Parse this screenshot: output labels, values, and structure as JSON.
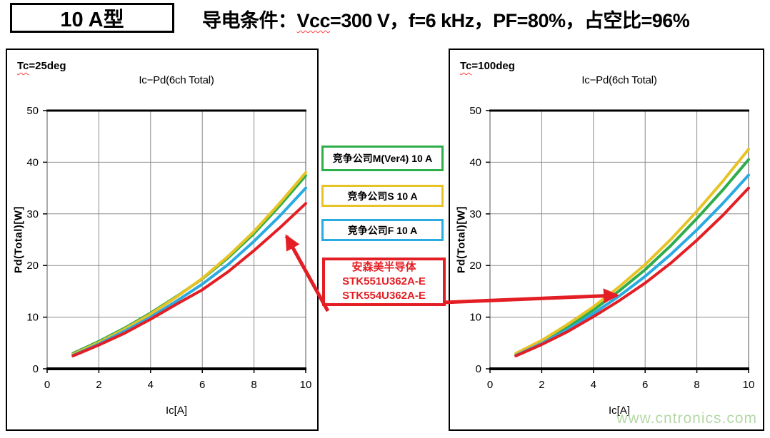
{
  "header": {
    "model_label": "10 A型",
    "condition": {
      "prefix": "导电条件：",
      "vcc": "Vcc",
      "after_vcc": "=300 V",
      "rest": "，f=6 kHz，PF=80%，占空比=96%"
    }
  },
  "legend": {
    "competitor_m": "竞争公司M(Ver4) 10 A",
    "competitor_s": "竞争公司S 10 A",
    "competitor_f": "竞争公司F 10 A",
    "onsemi": [
      "安森美半导体",
      "STK551U362A-E",
      "STK554U362A-E"
    ]
  },
  "watermark": "www.cntronics.com",
  "colors": {
    "green": "#2EAD4B",
    "yellow": "#E7C326",
    "blue": "#29ABE2",
    "red": "#E31E24",
    "watermark_green": "#B5D8A6",
    "grid_gray": "#8a8a8a"
  },
  "chart_data": [
    {
      "type": "line",
      "corner_label": {
        "prefix": "Tc",
        "suffix": "=25deg"
      },
      "title": "Ic−Pd(6ch Total)",
      "xlabel": "Ic[A]",
      "ylabel": "Pd(Total)[W]",
      "xlim": [
        0,
        10
      ],
      "ylim": [
        0,
        50
      ],
      "xticks": [
        0,
        2,
        4,
        6,
        8,
        10
      ],
      "yticks": [
        0,
        10,
        20,
        30,
        40,
        50
      ],
      "grid": true,
      "x": [
        1,
        2,
        3,
        4,
        5,
        6,
        7,
        8,
        9,
        10
      ],
      "series": [
        {
          "name": "竞争公司M(Ver4) 10 A",
          "color": "#2EAD4B",
          "values": [
            3.0,
            5.3,
            7.9,
            10.8,
            14.0,
            17.4,
            21.5,
            26.2,
            31.6,
            37.4
          ]
        },
        {
          "name": "竞争公司S 10 A",
          "color": "#E7C326",
          "values": [
            2.8,
            5.1,
            7.7,
            10.6,
            13.9,
            17.5,
            21.8,
            26.6,
            32.1,
            38.0
          ]
        },
        {
          "name": "竞争公司F 10 A",
          "color": "#29ABE2",
          "values": [
            2.6,
            4.8,
            7.3,
            10.0,
            13.1,
            16.4,
            20.2,
            24.7,
            29.6,
            35.0
          ]
        },
        {
          "name": "安森美半导体 STK551U362A-E / STK554U362A-E",
          "color": "#E31E24",
          "values": [
            2.5,
            4.6,
            6.9,
            9.6,
            12.5,
            15.3,
            18.8,
            22.9,
            27.3,
            32.0
          ]
        }
      ]
    },
    {
      "type": "line",
      "corner_label": {
        "prefix": "Tc",
        "suffix": "=100deg"
      },
      "title": "Ic−Pd(6ch Total)",
      "xlabel": "Ic[A]",
      "ylabel": "Pd(Total)[W]",
      "xlim": [
        0,
        10
      ],
      "ylim": [
        0,
        50
      ],
      "xticks": [
        0,
        2,
        4,
        6,
        8,
        10
      ],
      "yticks": [
        0,
        10,
        20,
        30,
        40,
        50
      ],
      "grid": true,
      "x": [
        1,
        2,
        3,
        4,
        5,
        6,
        7,
        8,
        9,
        10
      ],
      "series": [
        {
          "name": "竞争公司M(Ver4) 10 A",
          "color": "#2EAD4B",
          "values": [
            2.8,
            5.2,
            8.1,
            11.4,
            15.1,
            19.2,
            23.9,
            29.1,
            34.6,
            40.5
          ]
        },
        {
          "name": "竞争公司S 10 A",
          "color": "#E7C326",
          "values": [
            3.0,
            5.5,
            8.6,
            12.0,
            15.9,
            20.2,
            25.1,
            30.5,
            36.3,
            42.5
          ]
        },
        {
          "name": "竞争公司F 10 A",
          "color": "#29ABE2",
          "values": [
            2.6,
            4.9,
            7.6,
            10.7,
            14.1,
            17.9,
            22.2,
            26.9,
            32.0,
            37.5
          ]
        },
        {
          "name": "安森美半导体 STK551U362A-E / STK554U362A-E",
          "color": "#E31E24",
          "values": [
            2.5,
            4.7,
            7.2,
            10.1,
            13.2,
            16.6,
            20.5,
            24.9,
            29.7,
            35.0
          ]
        }
      ]
    }
  ]
}
